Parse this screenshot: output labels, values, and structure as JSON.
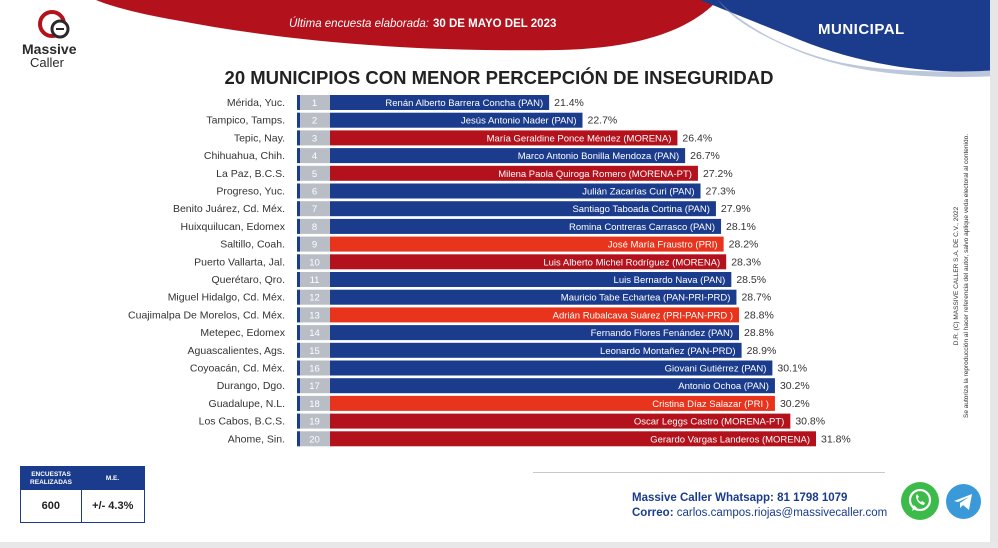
{
  "brand": {
    "name_line1": "Massive",
    "name_line2": "Caller"
  },
  "header": {
    "date_label": "Última encuesta elaborada:",
    "date_value": "30 DE MAYO DEL 2023",
    "scope": "MUNICIPAL",
    "colors": {
      "red": "#b3121c",
      "navy": "#1b3c8c"
    }
  },
  "side_note": {
    "line1": "D.R. (C) MASSIVE CALLER S.A. DE C.V., 2022",
    "line2": "Se autoriza la reproducción al hacer referencia del autor, salvo aplique veda electoral al contenido."
  },
  "stats": {
    "col1_header": "ENCUESTAS REALIZADAS",
    "col2_header": "M.E.",
    "col1_value": "600",
    "col2_value": "+/- 4.3%"
  },
  "contact": {
    "whatsapp_label": "Massive Caller Whatsapp:",
    "whatsapp_number": "81 1798 1079",
    "email_label": "Correo:",
    "email": "carlos.campos.riojas@massivecaller.com"
  },
  "icons": {
    "whatsapp": "whatsapp-icon",
    "telegram": "telegram-icon"
  },
  "chart_data": {
    "type": "bar",
    "orientation": "horizontal",
    "title": "20 MUNICIPIOS CON MENOR PERCEPCIÓN DE INSEGURIDAD",
    "party_colors": {
      "PAN": "#1b3c8c",
      "MORENA": "#b3121c",
      "PRI": "#e8341c"
    },
    "xlim": [
      0,
      32
    ],
    "rows": [
      {
        "rank": "1",
        "municipality": "Mérida, Yuc.",
        "mayor": "Renán Alberto Barrera Concha (PAN)",
        "value": 21.4,
        "label": "21.4%",
        "party": "PAN"
      },
      {
        "rank": "2",
        "municipality": "Tampico, Tamps.",
        "mayor": "Jesús Antonio Nader  (PAN)",
        "value": 22.7,
        "label": "22.7%",
        "party": "PAN"
      },
      {
        "rank": "3",
        "municipality": "Tepic, Nay.",
        "mayor": "María Geraldine Ponce Méndez (MORENA)",
        "value": 26.4,
        "label": "26.4%",
        "party": "MORENA"
      },
      {
        "rank": "4",
        "municipality": "Chihuahua, Chih.",
        "mayor": "Marco Antonio Bonilla Mendoza (PAN)",
        "value": 26.7,
        "label": "26.7%",
        "party": "PAN"
      },
      {
        "rank": "5",
        "municipality": "La Paz, B.C.S.",
        "mayor": "Milena Paola Quiroga Romero (MORENA-PT)",
        "value": 27.2,
        "label": "27.2%",
        "party": "MORENA"
      },
      {
        "rank": "6",
        "municipality": "Progreso, Yuc.",
        "mayor": "Julián Zacarías Curi (PAN)",
        "value": 27.3,
        "label": "27.3%",
        "party": "PAN"
      },
      {
        "rank": "7",
        "municipality": "Benito Juárez, Cd. Méx.",
        "mayor": "Santiago Taboada Cortina (PAN)",
        "value": 27.9,
        "label": "27.9%",
        "party": "PAN"
      },
      {
        "rank": "8",
        "municipality": "Huixquilucan, Edomex",
        "mayor": "Romina Contreras Carrasco  (PAN)",
        "value": 28.1,
        "label": "28.1%",
        "party": "PAN"
      },
      {
        "rank": "9",
        "municipality": "Saltillo, Coah.",
        "mayor": "José María Fraustro (PRI)",
        "value": 28.2,
        "label": "28.2%",
        "party": "PRI"
      },
      {
        "rank": "10",
        "municipality": "Puerto Vallarta, Jal.",
        "mayor": "Luis Alberto Michel Rodríguez (MORENA)",
        "value": 28.3,
        "label": "28.3%",
        "party": "MORENA"
      },
      {
        "rank": "11",
        "municipality": "Querétaro, Qro.",
        "mayor": "Luis Bernardo Nava (PAN)",
        "value": 28.5,
        "label": "28.5%",
        "party": "PAN"
      },
      {
        "rank": "12",
        "municipality": "Miguel Hidalgo, Cd. Méx.",
        "mayor": "Mauricio Tabe Echartea (PAN-PRI-PRD)",
        "value": 28.7,
        "label": "28.7%",
        "party": "PAN"
      },
      {
        "rank": "13",
        "municipality": "Cuajimalpa De Morelos, Cd. Méx.",
        "mayor": "Adrián Rubalcava Suárez (PRI-PAN-PRD )",
        "value": 28.8,
        "label": "28.8%",
        "party": "PRI"
      },
      {
        "rank": "14",
        "municipality": "Metepec, Edomex",
        "mayor": "Fernando Flores Fenández (PAN)",
        "value": 28.8,
        "label": "28.8%",
        "party": "PAN"
      },
      {
        "rank": "15",
        "municipality": "Aguascalientes, Ags.",
        "mayor": "Leonardo Montañez (PAN-PRD)",
        "value": 28.9,
        "label": "28.9%",
        "party": "PAN"
      },
      {
        "rank": "16",
        "municipality": "Coyoacán, Cd. Méx.",
        "mayor": "Giovani Gutiérrez (PAN)",
        "value": 30.1,
        "label": "30.1%",
        "party": "PAN"
      },
      {
        "rank": "17",
        "municipality": "Durango, Dgo.",
        "mayor": "Antonio Ochoa (PAN)",
        "value": 30.2,
        "label": "30.2%",
        "party": "PAN"
      },
      {
        "rank": "18",
        "municipality": "Guadalupe, N.L.",
        "mayor": "Cristina Díaz Salazar (PRI )",
        "value": 30.2,
        "label": "30.2%",
        "party": "PRI"
      },
      {
        "rank": "19",
        "municipality": "Los Cabos, B.C.S.",
        "mayor": "Oscar Leggs Castro (MORENA-PT)",
        "value": 30.8,
        "label": "30.8%",
        "party": "MORENA"
      },
      {
        "rank": "20",
        "municipality": "Ahome, Sin.",
        "mayor": "Gerardo Vargas Landeros (MORENA)",
        "value": 31.8,
        "label": "31.8%",
        "party": "MORENA"
      }
    ]
  }
}
